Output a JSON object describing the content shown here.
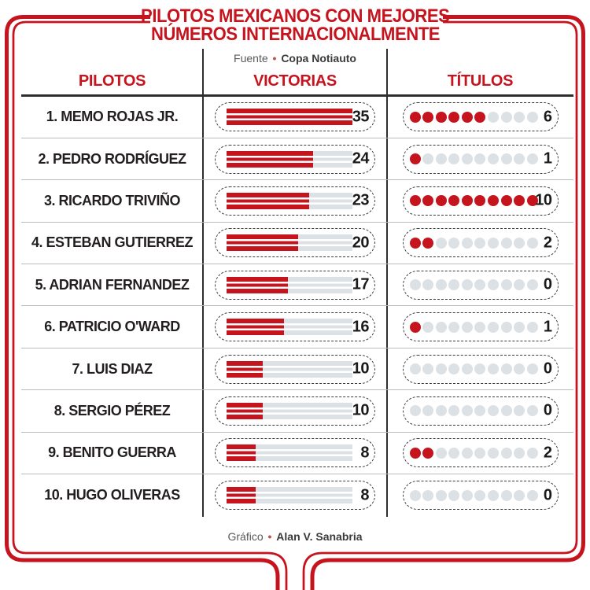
{
  "title": {
    "line1": "PILOTOS MEXICANOS CON MEJORES",
    "line2": "NÚMEROS INTERNACIONALMENTE"
  },
  "source": {
    "prefix": "Fuente",
    "separator": "•",
    "name": "Copa Notiauto"
  },
  "columns": {
    "pilots": "PILOTOS",
    "victories": "VICTORIAS",
    "titles": "TÍTULOS"
  },
  "footer": {
    "prefix": "Gráfico",
    "separator": "•",
    "name": "Alan V. Sanabria"
  },
  "colors": {
    "accent_red": "#C6141E",
    "empty_gray": "#DCE1E5",
    "rule_dark": "#2E2E2E",
    "row_separator": "#B8BDC1",
    "text_dark": "#231F20",
    "text_gray": "#58595B",
    "bullet": "#C0504D"
  },
  "chart_data": {
    "type": "table",
    "title": "PILOTOS MEXICANOS CON MEJORES NÚMEROS INTERNACIONALMENTE",
    "source": "Fuente • Copa Notiauto",
    "credit": "Gráfico • Alan V. Sanabria",
    "columns": [
      "PILOTOS",
      "VICTORIAS",
      "TÍTULOS"
    ],
    "victories_max": 35,
    "titles_max": 10,
    "rows": [
      {
        "rank": 1,
        "pilot": "1. MEMO ROJAS JR.",
        "victories": 35,
        "titles": 6
      },
      {
        "rank": 2,
        "pilot": "2. PEDRO RODRÍGUEZ",
        "victories": 24,
        "titles": 1
      },
      {
        "rank": 3,
        "pilot": "3. RICARDO TRIVIÑO",
        "victories": 23,
        "titles": 10
      },
      {
        "rank": 4,
        "pilot": "4. ESTEBAN GUTIERREZ",
        "victories": 20,
        "titles": 2
      },
      {
        "rank": 5,
        "pilot": "5. ADRIAN FERNANDEZ",
        "victories": 17,
        "titles": 0
      },
      {
        "rank": 6,
        "pilot": "6. PATRICIO O'WARD",
        "victories": 16,
        "titles": 1
      },
      {
        "rank": 7,
        "pilot": "7. LUIS DIAZ",
        "victories": 10,
        "titles": 0
      },
      {
        "rank": 8,
        "pilot": "8. SERGIO PÉREZ",
        "victories": 10,
        "titles": 0
      },
      {
        "rank": 9,
        "pilot": "9. BENITO GUERRA",
        "victories": 8,
        "titles": 2
      },
      {
        "rank": 10,
        "pilot": "10. HUGO OLIVERAS",
        "victories": 8,
        "titles": 0
      }
    ]
  }
}
